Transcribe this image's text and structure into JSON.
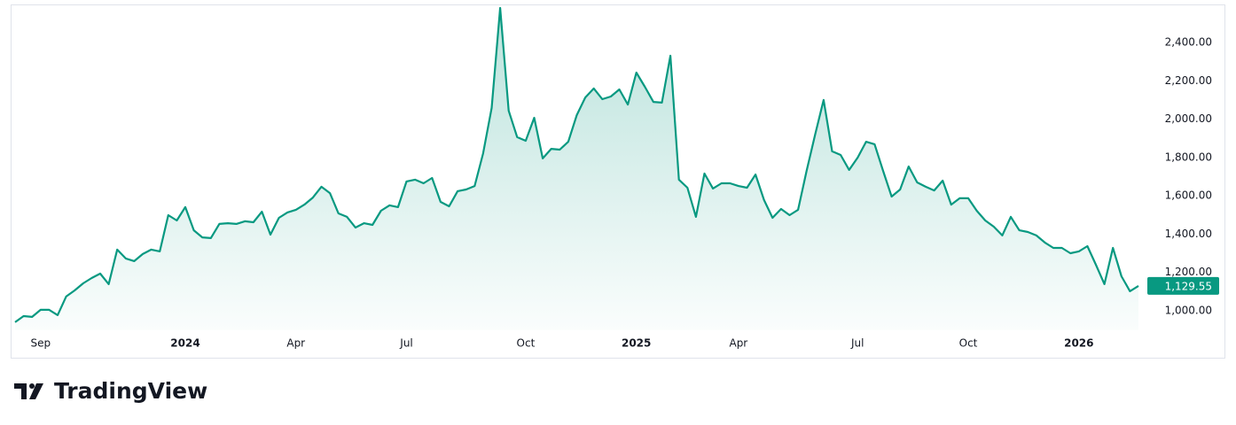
{
  "chart_data": {
    "type": "area",
    "brand": "TradingView",
    "color": "#089981",
    "categories": [
      null,
      null,
      null,
      "Sep",
      null,
      null,
      null,
      null,
      null,
      null,
      null,
      null,
      null,
      null,
      null,
      null,
      null,
      null,
      null,
      null,
      "2024",
      null,
      null,
      null,
      null,
      null,
      null,
      null,
      null,
      null,
      null,
      null,
      null,
      "Apr",
      null,
      null,
      null,
      null,
      null,
      null,
      null,
      null,
      null,
      null,
      null,
      null,
      "Jul",
      null,
      null,
      null,
      null,
      null,
      null,
      null,
      null,
      null,
      null,
      null,
      null,
      null,
      "Oct",
      null,
      null,
      null,
      null,
      null,
      null,
      null,
      null,
      null,
      null,
      null,
      null,
      "2025",
      null,
      null,
      null,
      null,
      null,
      null,
      null,
      null,
      null,
      null,
      null,
      "Apr",
      null,
      null,
      null,
      null,
      null,
      null,
      null,
      null,
      null,
      null,
      null,
      null,
      null,
      "Jul",
      null,
      null,
      null,
      null,
      null,
      null,
      null,
      null,
      null,
      null,
      null,
      null,
      "Oct",
      null,
      null,
      null,
      null,
      null,
      null,
      null,
      null,
      null,
      null,
      null,
      null,
      "2026",
      null,
      null,
      null,
      null,
      null,
      null,
      null
    ],
    "values": [
      940,
      972,
      968,
      1005,
      1005,
      977,
      1074,
      1106,
      1143,
      1171,
      1194,
      1139,
      1319,
      1273,
      1259,
      1296,
      1319,
      1310,
      1499,
      1471,
      1541,
      1420,
      1383,
      1379,
      1453,
      1457,
      1453,
      1467,
      1462,
      1517,
      1397,
      1485,
      1513,
      1527,
      1554,
      1591,
      1647,
      1614,
      1508,
      1490,
      1434,
      1457,
      1448,
      1522,
      1550,
      1541,
      1675,
      1684,
      1665,
      1693,
      1568,
      1545,
      1624,
      1633,
      1651,
      1822,
      2058,
      2580,
      2044,
      1906,
      1887,
      2007,
      1795,
      1845,
      1841,
      1882,
      2021,
      2113,
      2160,
      2104,
      2118,
      2155,
      2076,
      2243,
      2169,
      2090,
      2086,
      2331,
      1684,
      1642,
      1490,
      1716,
      1638,
      1665,
      1665,
      1651,
      1642,
      1711,
      1578,
      1485,
      1531,
      1499,
      1527,
      1730,
      1919,
      2100,
      1832,
      1813,
      1735,
      1799,
      1882,
      1869,
      1730,
      1596,
      1633,
      1753,
      1670,
      1647,
      1628,
      1679,
      1554,
      1587,
      1587,
      1522,
      1471,
      1439,
      1393,
      1490,
      1420,
      1411,
      1393,
      1356,
      1328,
      1328,
      1300,
      1310,
      1337,
      1240,
      1139,
      1328,
      1180,
      1102,
      1129.55
    ],
    "last_label": "1,129.55",
    "ylim": [
      900,
      2600
    ],
    "yticks": [
      {
        "value": 1000,
        "label": "1,000.00"
      },
      {
        "value": 1200,
        "label": "1,200.00"
      },
      {
        "value": 1400,
        "label": "1,400.00"
      },
      {
        "value": 1600,
        "label": "1,600.00"
      },
      {
        "value": 1800,
        "label": "1,800.00"
      },
      {
        "value": 2000,
        "label": "2,000.00"
      },
      {
        "value": 2200,
        "label": "2,200.00"
      },
      {
        "value": 2400,
        "label": "2,400.00"
      }
    ]
  }
}
